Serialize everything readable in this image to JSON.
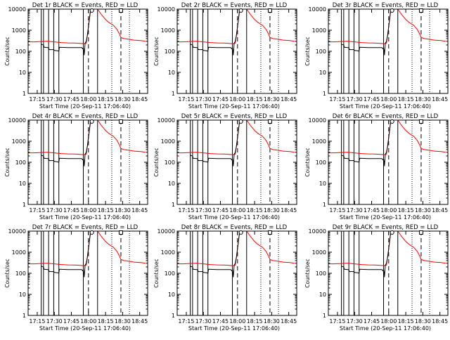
{
  "colors": {
    "events": "#000000",
    "lld": "#ff0000",
    "background": "#ffffff",
    "axes": "#000000"
  },
  "panel_titles": [
    "Det 1r BLACK = Events, RED = LLD",
    "Det 2r BLACK = Events, RED = LLD",
    "Det 3r BLACK = Events, RED = LLD",
    "Det 4r BLACK = Events, RED = LLD",
    "Det 5r BLACK = Events, RED = LLD",
    "Det 6r BLACK = Events, RED = LLD",
    "Det 7r BLACK = Events, RED = LLD",
    "Det 8r BLACK = Events, RED = LLD",
    "Det 9r BLACK = Events, RED = LLD"
  ],
  "chart_data": {
    "type": "line",
    "layout": "3x3 grid of small-multiple panels",
    "xlabel": "Start Time (20-Sep-11 17:06:40)",
    "ylabel": "Counts/sec",
    "x_ticks": [
      "17:15",
      "17:30",
      "17:45",
      "18:00",
      "18:15",
      "18:30",
      "18:45"
    ],
    "x_tick_minutes": [
      15,
      30,
      45,
      60,
      75,
      90,
      105
    ],
    "x_unit": "minutes after 17:00",
    "xlim": [
      7,
      112
    ],
    "y_ticks": [
      "1",
      "10",
      "100",
      "1000",
      "10000"
    ],
    "y_scale": "log",
    "ylim": [
      1,
      10000
    ],
    "vertical_lines": {
      "solid_minutes": [
        18.5,
        20.5,
        25,
        29.5,
        34,
        55.5,
        68
      ],
      "dashed_minutes": [
        60,
        88.5
      ],
      "dotted_minutes": [
        80.5,
        96,
        112
      ]
    },
    "markers": [
      {
        "shape": "circle",
        "x": 63,
        "y": 10000
      },
      {
        "shape": "square",
        "x": 88.5,
        "y": 10000
      }
    ],
    "series": [
      {
        "name": "LLD",
        "color": "red",
        "points": [
          [
            7,
            280
          ],
          [
            12,
            280
          ],
          [
            18,
            290
          ],
          [
            24,
            300
          ],
          [
            30,
            280
          ],
          [
            36,
            260
          ],
          [
            42,
            250
          ],
          [
            48,
            245
          ],
          [
            56,
            230
          ],
          [
            58,
            240
          ],
          [
            59,
            550
          ],
          [
            60,
            1500
          ],
          [
            61,
            4000
          ],
          [
            62,
            10000
          ],
          [
            68,
            10000
          ],
          [
            70,
            7000
          ],
          [
            72,
            5000
          ],
          [
            75,
            3200
          ],
          [
            78,
            2300
          ],
          [
            82,
            1700
          ],
          [
            85,
            1100
          ],
          [
            87,
            700
          ],
          [
            88,
            520
          ],
          [
            88.5,
            450
          ],
          [
            91,
            400
          ],
          [
            96,
            370
          ],
          [
            100,
            340
          ],
          [
            106,
            320
          ],
          [
            110,
            300
          ]
        ]
      },
      {
        "name": "Events",
        "color": "black",
        "points": [
          [
            18.5,
            220
          ],
          [
            19,
            210
          ],
          [
            20.5,
            200
          ],
          [
            21,
            155
          ],
          [
            24,
            150
          ],
          [
            25,
            150
          ],
          [
            25.5,
            120
          ],
          [
            29.5,
            120
          ],
          [
            30,
            110
          ],
          [
            33,
            105
          ],
          [
            34,
            100
          ],
          [
            34.5,
            155
          ],
          [
            42,
            150
          ],
          [
            48,
            150
          ],
          [
            54,
            150
          ],
          [
            55,
            130
          ],
          [
            55.5,
            150
          ],
          [
            56,
            110
          ],
          [
            56.3,
            65
          ],
          [
            57,
            240
          ],
          [
            58,
            300
          ],
          [
            59,
            560
          ],
          [
            60,
            1400
          ],
          [
            61,
            4000
          ],
          [
            62,
            10000
          ]
        ]
      }
    ]
  }
}
